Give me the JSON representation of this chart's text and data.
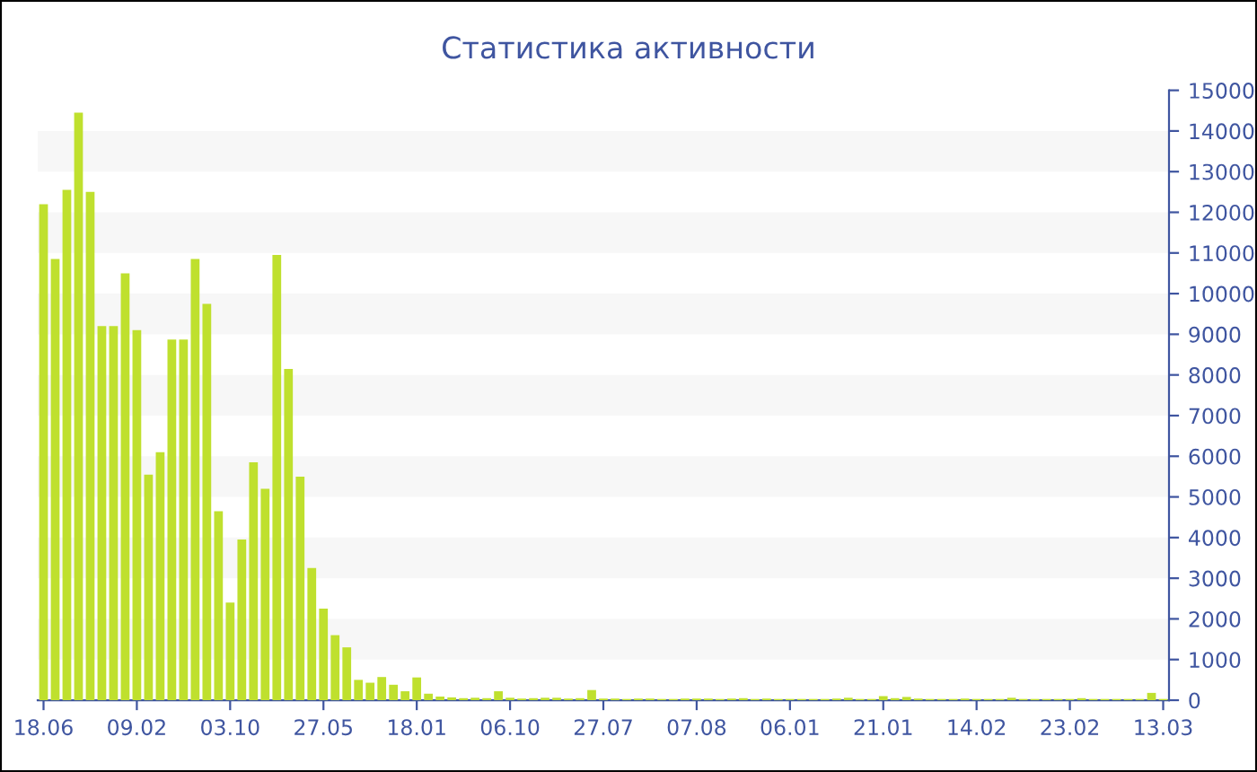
{
  "chart_data": {
    "type": "bar",
    "title": "Статистика активности",
    "categories": [
      "18.06",
      null,
      null,
      null,
      null,
      null,
      null,
      null,
      "09.02",
      null,
      null,
      null,
      null,
      null,
      null,
      null,
      "03.10",
      null,
      null,
      null,
      null,
      null,
      null,
      null,
      "27.05",
      null,
      null,
      null,
      null,
      null,
      null,
      null,
      "18.01",
      null,
      null,
      null,
      null,
      null,
      null,
      null,
      "06.10",
      null,
      null,
      null,
      null,
      null,
      null,
      null,
      "27.07",
      null,
      null,
      null,
      null,
      null,
      null,
      null,
      "07.08",
      null,
      null,
      null,
      null,
      null,
      null,
      null,
      "06.01",
      null,
      null,
      null,
      null,
      null,
      null,
      null,
      "21.01",
      null,
      null,
      null,
      null,
      null,
      null,
      null,
      "14.02",
      null,
      null,
      null,
      null,
      null,
      null,
      null,
      "23.02",
      null,
      null,
      null,
      null,
      null,
      null,
      null,
      "13.03"
    ],
    "values": [
      12200,
      10850,
      12550,
      14450,
      12500,
      9200,
      9200,
      10500,
      9100,
      5550,
      6100,
      8870,
      8870,
      10850,
      9750,
      4650,
      2400,
      3950,
      5850,
      5200,
      10950,
      8150,
      5500,
      3250,
      2250,
      1600,
      1300,
      500,
      430,
      570,
      380,
      220,
      560,
      160,
      90,
      70,
      50,
      60,
      50,
      220,
      60,
      40,
      50,
      60,
      60,
      40,
      50,
      250,
      40,
      40,
      30,
      40,
      40,
      30,
      30,
      40,
      40,
      40,
      30,
      40,
      50,
      30,
      40,
      30,
      30,
      30,
      30,
      30,
      40,
      60,
      30,
      30,
      100,
      50,
      80,
      40,
      30,
      30,
      30,
      40,
      30,
      30,
      30,
      60,
      30,
      30,
      30,
      30,
      30,
      50,
      30,
      30,
      30,
      30,
      30,
      180,
      30
    ],
    "color": "#bfe02e",
    "ylim": [
      0,
      15000
    ],
    "yticks": [
      0,
      1000,
      2000,
      3000,
      4000,
      5000,
      6000,
      7000,
      8000,
      9000,
      10000,
      11000,
      12000,
      13000,
      14000,
      15000
    ],
    "bands": [
      {
        "axis": "y",
        "from": 1000,
        "to": 2000,
        "color": "#f7f7f7"
      },
      {
        "axis": "y",
        "from": 3000,
        "to": 4000,
        "color": "#f7f7f7"
      },
      {
        "axis": "y",
        "from": 5000,
        "to": 6000,
        "color": "#f7f7f7"
      },
      {
        "axis": "y",
        "from": 7000,
        "to": 8000,
        "color": "#f7f7f7"
      },
      {
        "axis": "y",
        "from": 9000,
        "to": 10000,
        "color": "#f7f7f7"
      },
      {
        "axis": "y",
        "from": 11000,
        "to": 12000,
        "color": "#f7f7f7"
      },
      {
        "axis": "y",
        "from": 13000,
        "to": 14000,
        "color": "#f7f7f7"
      }
    ]
  }
}
